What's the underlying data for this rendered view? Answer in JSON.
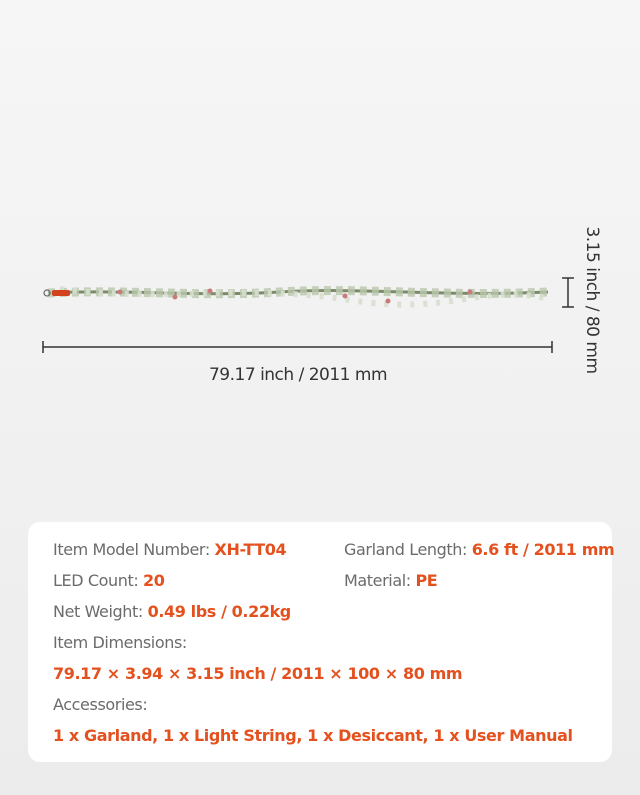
{
  "dimensions": {
    "length": "79.17 inch /  2011 mm",
    "height": "3.15 inch /  80 mm"
  },
  "specs": {
    "model": {
      "label": "Item Model Number:",
      "value": "XH-TT04"
    },
    "garland_length": {
      "label": "Garland Length:",
      "value": "6.6 ft / 2011 mm"
    },
    "led_count": {
      "label": "LED Count:",
      "value": "20"
    },
    "material": {
      "label": "Material:",
      "value": "PE"
    },
    "net_weight": {
      "label": "Net Weight:",
      "value": "0.49 lbs / 0.22kg"
    },
    "item_dimensions": {
      "label": "Item Dimensions:",
      "value": "79.17 × 3.94 × 3.15 inch  / 2011 × 100 × 80 mm"
    },
    "accessories": {
      "label": "Accessories:",
      "value": "1 x Garland, 1 x Light String, 1 x Desiccant, 1 x User Manual"
    }
  }
}
